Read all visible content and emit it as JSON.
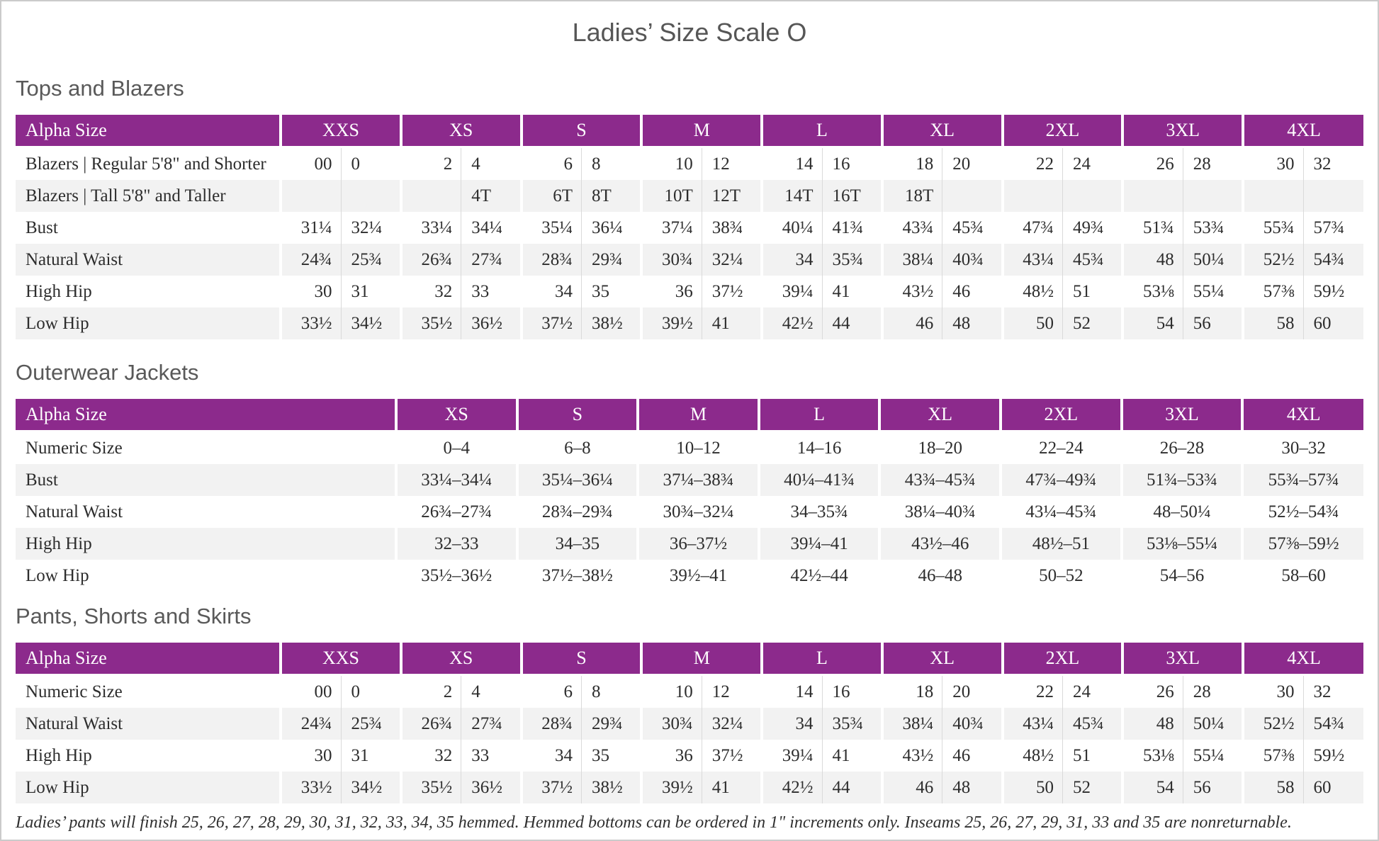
{
  "title": "Ladies’ Size Scale O",
  "footnote": "Ladies’ pants will finish 25, 26, 27, 28, 29, 30, 31, 32, 33, 34, 35 hemmed. Hemmed bottoms can be ordered in 1\" increments only. Inseams 25, 26, 27, 29, 31, 33 and 35 are nonreturnable.",
  "colors": {
    "header_purple": "#8C2A8C",
    "row_stripe": "#F2F2F2",
    "cell_divider": "#DADADA",
    "heading_text": "#595959",
    "body_text": "#2D2D2D"
  },
  "tables": [
    {
      "heading": "Tops and Blazers",
      "label_header": "Alpha Size",
      "columns_per_size": 2,
      "sizes": [
        "XXS",
        "XS",
        "S",
        "M",
        "L",
        "XL",
        "2XL",
        "3XL",
        "4XL"
      ],
      "rows": [
        {
          "label": "Blazers | Regular 5'8\" and Shorter",
          "values": [
            [
              "00",
              "0"
            ],
            [
              "2",
              "4"
            ],
            [
              "6",
              "8"
            ],
            [
              "10",
              "12"
            ],
            [
              "14",
              "16"
            ],
            [
              "18",
              "20"
            ],
            [
              "22",
              "24"
            ],
            [
              "26",
              "28"
            ],
            [
              "30",
              "32"
            ]
          ]
        },
        {
          "label": "Blazers | Tall 5'8\" and Taller",
          "values": [
            [
              "",
              ""
            ],
            [
              "",
              "4T"
            ],
            [
              "6T",
              "8T"
            ],
            [
              "10T",
              "12T"
            ],
            [
              "14T",
              "16T"
            ],
            [
              "18T",
              ""
            ],
            [
              "",
              ""
            ],
            [
              "",
              ""
            ],
            [
              "",
              ""
            ]
          ]
        },
        {
          "label": "Bust",
          "values": [
            [
              "31¼",
              "32¼"
            ],
            [
              "33¼",
              "34¼"
            ],
            [
              "35¼",
              "36¼"
            ],
            [
              "37¼",
              "38¾"
            ],
            [
              "40¼",
              "41¾"
            ],
            [
              "43¾",
              "45¾"
            ],
            [
              "47¾",
              "49¾"
            ],
            [
              "51¾",
              "53¾"
            ],
            [
              "55¾",
              "57¾"
            ]
          ]
        },
        {
          "label": "Natural Waist",
          "values": [
            [
              "24¾",
              "25¾"
            ],
            [
              "26¾",
              "27¾"
            ],
            [
              "28¾",
              "29¾"
            ],
            [
              "30¾",
              "32¼"
            ],
            [
              "34",
              "35¾"
            ],
            [
              "38¼",
              "40¾"
            ],
            [
              "43¼",
              "45¾"
            ],
            [
              "48",
              "50¼"
            ],
            [
              "52½",
              "54¾"
            ]
          ]
        },
        {
          "label": "High Hip",
          "values": [
            [
              "30",
              "31"
            ],
            [
              "32",
              "33"
            ],
            [
              "34",
              "35"
            ],
            [
              "36",
              "37½"
            ],
            [
              "39¼",
              "41"
            ],
            [
              "43½",
              "46"
            ],
            [
              "48½",
              "51"
            ],
            [
              "53⅛",
              "55¼"
            ],
            [
              "57⅜",
              "59½"
            ]
          ]
        },
        {
          "label": "Low Hip",
          "values": [
            [
              "33½",
              "34½"
            ],
            [
              "35½",
              "36½"
            ],
            [
              "37½",
              "38½"
            ],
            [
              "39½",
              "41"
            ],
            [
              "42½",
              "44"
            ],
            [
              "46",
              "48"
            ],
            [
              "50",
              "52"
            ],
            [
              "54",
              "56"
            ],
            [
              "58",
              "60"
            ]
          ]
        }
      ]
    },
    {
      "heading": "Outerwear Jackets",
      "label_header": "Alpha Size",
      "columns_per_size": 1,
      "sizes": [
        "XS",
        "S",
        "M",
        "L",
        "XL",
        "2XL",
        "3XL",
        "4XL"
      ],
      "rows": [
        {
          "label": "Numeric Size",
          "values": [
            "0–4",
            "6–8",
            "10–12",
            "14–16",
            "18–20",
            "22–24",
            "26–28",
            "30–32"
          ]
        },
        {
          "label": "Bust",
          "values": [
            "33¼–34¼",
            "35¼–36¼",
            "37¼–38¾",
            "40¼–41¾",
            "43¾–45¾",
            "47¾–49¾",
            "51¾–53¾",
            "55¾–57¾"
          ]
        },
        {
          "label": "Natural Waist",
          "values": [
            "26¾–27¾",
            "28¾–29¾",
            "30¾–32¼",
            "34–35¾",
            "38¼–40¾",
            "43¼–45¾",
            "48–50¼",
            "52½–54¾"
          ]
        },
        {
          "label": "High Hip",
          "values": [
            "32–33",
            "34–35",
            "36–37½",
            "39¼–41",
            "43½–46",
            "48½–51",
            "53⅛–55¼",
            "57⅜–59½"
          ]
        },
        {
          "label": "Low Hip",
          "values": [
            "35½–36½",
            "37½–38½",
            "39½–41",
            "42½–44",
            "46–48",
            "50–52",
            "54–56",
            "58–60"
          ]
        }
      ]
    },
    {
      "heading": "Pants, Shorts and Skirts",
      "label_header": "Alpha Size",
      "columns_per_size": 2,
      "sizes": [
        "XXS",
        "XS",
        "S",
        "M",
        "L",
        "XL",
        "2XL",
        "3XL",
        "4XL"
      ],
      "rows": [
        {
          "label": "Numeric Size",
          "values": [
            [
              "00",
              "0"
            ],
            [
              "2",
              "4"
            ],
            [
              "6",
              "8"
            ],
            [
              "10",
              "12"
            ],
            [
              "14",
              "16"
            ],
            [
              "18",
              "20"
            ],
            [
              "22",
              "24"
            ],
            [
              "26",
              "28"
            ],
            [
              "30",
              "32"
            ]
          ]
        },
        {
          "label": "Natural Waist",
          "values": [
            [
              "24¾",
              "25¾"
            ],
            [
              "26¾",
              "27¾"
            ],
            [
              "28¾",
              "29¾"
            ],
            [
              "30¾",
              "32¼"
            ],
            [
              "34",
              "35¾"
            ],
            [
              "38¼",
              "40¾"
            ],
            [
              "43¼",
              "45¾"
            ],
            [
              "48",
              "50¼"
            ],
            [
              "52½",
              "54¾"
            ]
          ]
        },
        {
          "label": "High Hip",
          "values": [
            [
              "30",
              "31"
            ],
            [
              "32",
              "33"
            ],
            [
              "34",
              "35"
            ],
            [
              "36",
              "37½"
            ],
            [
              "39¼",
              "41"
            ],
            [
              "43½",
              "46"
            ],
            [
              "48½",
              "51"
            ],
            [
              "53⅛",
              "55¼"
            ],
            [
              "57⅜",
              "59½"
            ]
          ]
        },
        {
          "label": "Low Hip",
          "values": [
            [
              "33½",
              "34½"
            ],
            [
              "35½",
              "36½"
            ],
            [
              "37½",
              "38½"
            ],
            [
              "39½",
              "41"
            ],
            [
              "42½",
              "44"
            ],
            [
              "46",
              "48"
            ],
            [
              "50",
              "52"
            ],
            [
              "54",
              "56"
            ],
            [
              "58",
              "60"
            ]
          ]
        }
      ]
    }
  ]
}
